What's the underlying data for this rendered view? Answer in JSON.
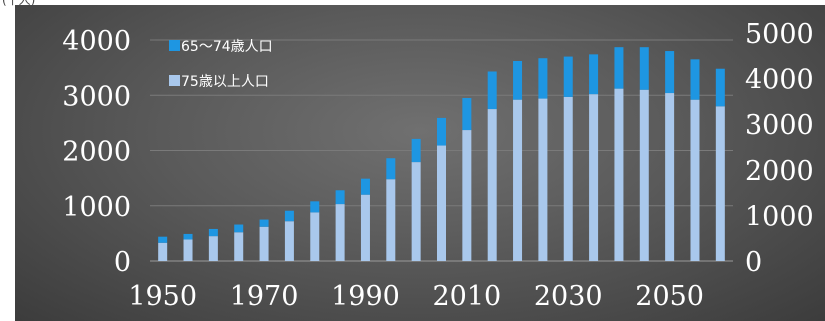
{
  "header": {
    "corner_text": "(千人)"
  },
  "chart_data": {
    "type": "bar",
    "stacked": true,
    "categories": [
      "1950",
      "1955",
      "1960",
      "1965",
      "1970",
      "1975",
      "1980",
      "1985",
      "1990",
      "1995",
      "2000",
      "2005",
      "2010",
      "2015",
      "2020",
      "2025",
      "2030",
      "2035",
      "2040",
      "2045",
      "2050",
      "2055",
      "2060"
    ],
    "series": [
      {
        "name": "75歳以上人口",
        "color": "#a9c8ec",
        "values": [
          330,
          390,
          450,
          520,
          620,
          720,
          880,
          1030,
          1200,
          1480,
          1790,
          2090,
          2370,
          2750,
          2920,
          2940,
          2970,
          3020,
          3120,
          3100,
          3040,
          2920,
          2800
        ]
      },
      {
        "name": "65～74歳人口",
        "color": "#1e96e2",
        "values": [
          110,
          100,
          130,
          140,
          130,
          190,
          200,
          250,
          290,
          380,
          420,
          500,
          580,
          680,
          700,
          730,
          730,
          720,
          750,
          770,
          760,
          730,
          680
        ]
      }
    ],
    "x_tick_labels": [
      "1950",
      "1970",
      "1990",
      "2010",
      "2030",
      "2050"
    ],
    "left_axis": {
      "ticks": [
        "0",
        "1000",
        "2000",
        "3000",
        "4000"
      ],
      "ylim": [
        0,
        4000
      ]
    },
    "right_axis": {
      "ticks": [
        "0",
        "1000",
        "2000",
        "3000",
        "4000",
        "5000"
      ]
    },
    "legend_position": "top-left",
    "grid": true
  }
}
